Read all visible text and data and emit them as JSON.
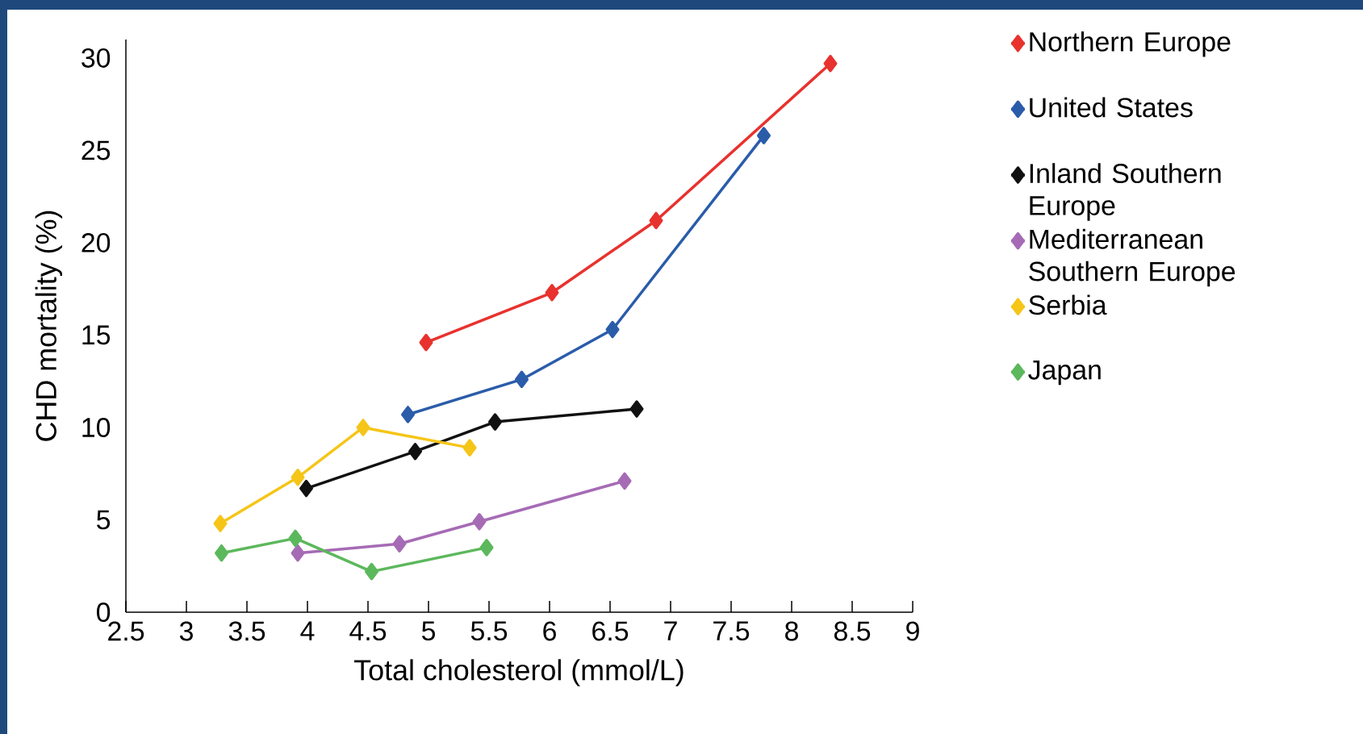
{
  "chart_data": {
    "type": "line",
    "xlabel": "Total cholesterol (mmol/L)",
    "ylabel": "CHD mortality (%)",
    "xlim": [
      2.5,
      9
    ],
    "ylim": [
      0,
      31
    ],
    "xticks": [
      2.5,
      3,
      3.5,
      4,
      4.5,
      5,
      5.5,
      6,
      6.5,
      7,
      7.5,
      8,
      8.5,
      9
    ],
    "yticks": [
      0,
      5,
      10,
      15,
      20,
      25,
      30
    ],
    "marker": "diamond",
    "legend": "right",
    "grid": false,
    "series": [
      {
        "name": "Northern Europe",
        "color": "#e8322e",
        "x": [
          4.98,
          6.02,
          6.88,
          8.32
        ],
        "values": [
          14.6,
          17.3,
          21.2,
          29.7
        ]
      },
      {
        "name": "United States",
        "color": "#2a5caa",
        "x": [
          4.83,
          5.77,
          6.52,
          7.77
        ],
        "values": [
          10.7,
          12.6,
          15.3,
          25.8
        ]
      },
      {
        "name": "Inland Southern Europe",
        "color": "#111111",
        "x": [
          3.99,
          4.89,
          5.55,
          6.72
        ],
        "values": [
          6.7,
          8.7,
          10.3,
          11.0
        ]
      },
      {
        "name": "Mediterranean Southern Europe",
        "color": "#a66bb5",
        "x": [
          3.92,
          4.76,
          5.42,
          6.62
        ],
        "values": [
          3.2,
          3.7,
          4.9,
          7.1
        ]
      },
      {
        "name": "Serbia",
        "color": "#f5c518",
        "x": [
          3.28,
          3.92,
          4.46,
          5.34
        ],
        "values": [
          4.8,
          7.3,
          10.0,
          8.9
        ]
      },
      {
        "name": "Japan",
        "color": "#5cb85c",
        "x": [
          3.29,
          3.9,
          4.53,
          5.48
        ],
        "values": [
          3.2,
          4.0,
          2.2,
          3.5
        ]
      }
    ]
  }
}
